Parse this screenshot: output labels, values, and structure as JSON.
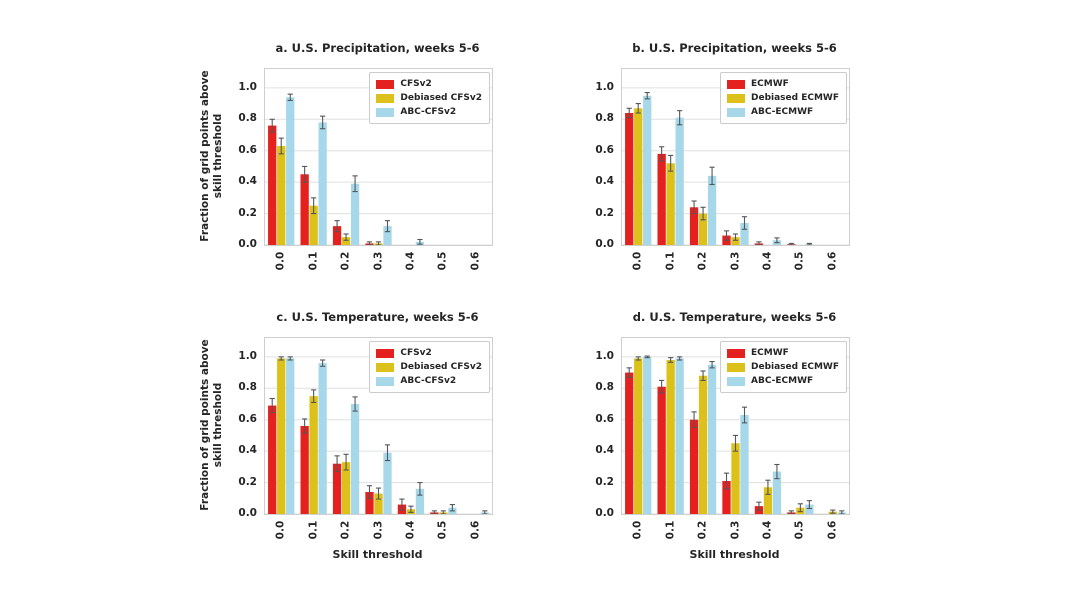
{
  "figure": {
    "background": "#ffffff",
    "ylabel_line1": "Fraction of grid points above",
    "ylabel_line2": "skill threshold",
    "xlabel": "Skill threshold",
    "ytick_labels": [
      "0.0",
      "0.2",
      "0.4",
      "0.6",
      "0.8",
      "1.0"
    ]
  },
  "colors": {
    "red": "#e4211f",
    "gold": "#dcc11b",
    "light_blue": "#a6d8e9",
    "error_bar": "#53565a",
    "grid_line": "#e0e0e0",
    "spine": "#cfcfcf",
    "text": "#252525"
  },
  "chart_data": [
    {
      "id": "a",
      "type": "bar",
      "title": "a. U.S. Precipitation, weeks 5-6",
      "categories": [
        "0.0",
        "0.1",
        "0.2",
        "0.3",
        "0.4",
        "0.5",
        "0.6"
      ],
      "ylim": [
        0,
        1.12
      ],
      "yticks": [
        0.0,
        0.2,
        0.4,
        0.6,
        0.8,
        1.0
      ],
      "grid": true,
      "legend_position": "upper right",
      "series": [
        {
          "name": "CFSv2",
          "color": "#e4211f",
          "values": [
            0.76,
            0.45,
            0.12,
            0.01,
            0.0,
            0.0,
            0.0
          ],
          "errors": [
            0.04,
            0.05,
            0.035,
            0.01,
            0.0,
            0.0,
            0.0
          ]
        },
        {
          "name": "Debiased CFSv2",
          "color": "#dcc11b",
          "values": [
            0.63,
            0.25,
            0.05,
            0.01,
            0.0,
            0.0,
            0.0
          ],
          "errors": [
            0.05,
            0.05,
            0.02,
            0.01,
            0.0,
            0.0,
            0.0
          ]
        },
        {
          "name": "ABC-CFSv2",
          "color": "#a6d8e9",
          "values": [
            0.94,
            0.78,
            0.39,
            0.12,
            0.02,
            0.0,
            0.0
          ],
          "errors": [
            0.02,
            0.04,
            0.05,
            0.035,
            0.015,
            0.0,
            0.0
          ]
        }
      ]
    },
    {
      "id": "b",
      "type": "bar",
      "title": "b. U.S. Precipitation, weeks 5-6",
      "categories": [
        "0.0",
        "0.1",
        "0.2",
        "0.3",
        "0.4",
        "0.5",
        "0.6"
      ],
      "ylim": [
        0,
        1.12
      ],
      "yticks": [
        0.0,
        0.2,
        0.4,
        0.6,
        0.8,
        1.0
      ],
      "grid": true,
      "legend_position": "upper right",
      "series": [
        {
          "name": "ECMWF",
          "color": "#e4211f",
          "values": [
            0.84,
            0.58,
            0.24,
            0.06,
            0.01,
            0.005,
            0.0
          ],
          "errors": [
            0.03,
            0.045,
            0.04,
            0.03,
            0.01,
            0.005,
            0.0
          ]
        },
        {
          "name": "Debiased ECMWF",
          "color": "#dcc11b",
          "values": [
            0.87,
            0.52,
            0.2,
            0.05,
            0.0,
            0.0,
            0.0
          ],
          "errors": [
            0.03,
            0.05,
            0.04,
            0.02,
            0.0,
            0.0,
            0.0
          ]
        },
        {
          "name": "ABC-ECMWF",
          "color": "#a6d8e9",
          "values": [
            0.95,
            0.81,
            0.44,
            0.14,
            0.03,
            0.005,
            0.0
          ],
          "errors": [
            0.02,
            0.045,
            0.055,
            0.04,
            0.015,
            0.005,
            0.0
          ]
        }
      ]
    },
    {
      "id": "c",
      "type": "bar",
      "title": "c. U.S. Temperature, weeks 5-6",
      "categories": [
        "0.0",
        "0.1",
        "0.2",
        "0.3",
        "0.4",
        "0.5",
        "0.6"
      ],
      "ylim": [
        0,
        1.12
      ],
      "yticks": [
        0.0,
        0.2,
        0.4,
        0.6,
        0.8,
        1.0
      ],
      "grid": true,
      "legend_position": "upper right",
      "series": [
        {
          "name": "CFSv2",
          "color": "#e4211f",
          "values": [
            0.69,
            0.56,
            0.32,
            0.14,
            0.06,
            0.01,
            0.0
          ],
          "errors": [
            0.045,
            0.045,
            0.05,
            0.04,
            0.035,
            0.01,
            0.0
          ]
        },
        {
          "name": "Debiased CFSv2",
          "color": "#dcc11b",
          "values": [
            0.99,
            0.75,
            0.33,
            0.13,
            0.03,
            0.01,
            0.0
          ],
          "errors": [
            0.01,
            0.04,
            0.05,
            0.035,
            0.02,
            0.01,
            0.0
          ]
        },
        {
          "name": "ABC-CFSv2",
          "color": "#a6d8e9",
          "values": [
            0.99,
            0.96,
            0.7,
            0.39,
            0.16,
            0.04,
            0.01
          ],
          "errors": [
            0.01,
            0.02,
            0.045,
            0.05,
            0.04,
            0.02,
            0.01
          ]
        }
      ]
    },
    {
      "id": "d",
      "type": "bar",
      "title": "d. U.S. Temperature, weeks 5-6",
      "categories": [
        "0.0",
        "0.1",
        "0.2",
        "0.3",
        "0.4",
        "0.5",
        "0.6"
      ],
      "ylim": [
        0,
        1.12
      ],
      "yticks": [
        0.0,
        0.2,
        0.4,
        0.6,
        0.8,
        1.0
      ],
      "grid": true,
      "legend_position": "upper right",
      "series": [
        {
          "name": "ECMWF",
          "color": "#e4211f",
          "values": [
            0.9,
            0.81,
            0.6,
            0.21,
            0.05,
            0.01,
            0.0
          ],
          "errors": [
            0.03,
            0.04,
            0.05,
            0.05,
            0.025,
            0.01,
            0.0
          ]
        },
        {
          "name": "Debiased ECMWF",
          "color": "#dcc11b",
          "values": [
            0.99,
            0.98,
            0.88,
            0.45,
            0.17,
            0.04,
            0.015
          ],
          "errors": [
            0.01,
            0.015,
            0.03,
            0.05,
            0.045,
            0.025,
            0.01
          ]
        },
        {
          "name": "ABC-ECMWF",
          "color": "#a6d8e9",
          "values": [
            1.0,
            0.99,
            0.95,
            0.63,
            0.27,
            0.06,
            0.01
          ],
          "errors": [
            0.005,
            0.01,
            0.02,
            0.05,
            0.045,
            0.025,
            0.01
          ]
        }
      ]
    }
  ]
}
